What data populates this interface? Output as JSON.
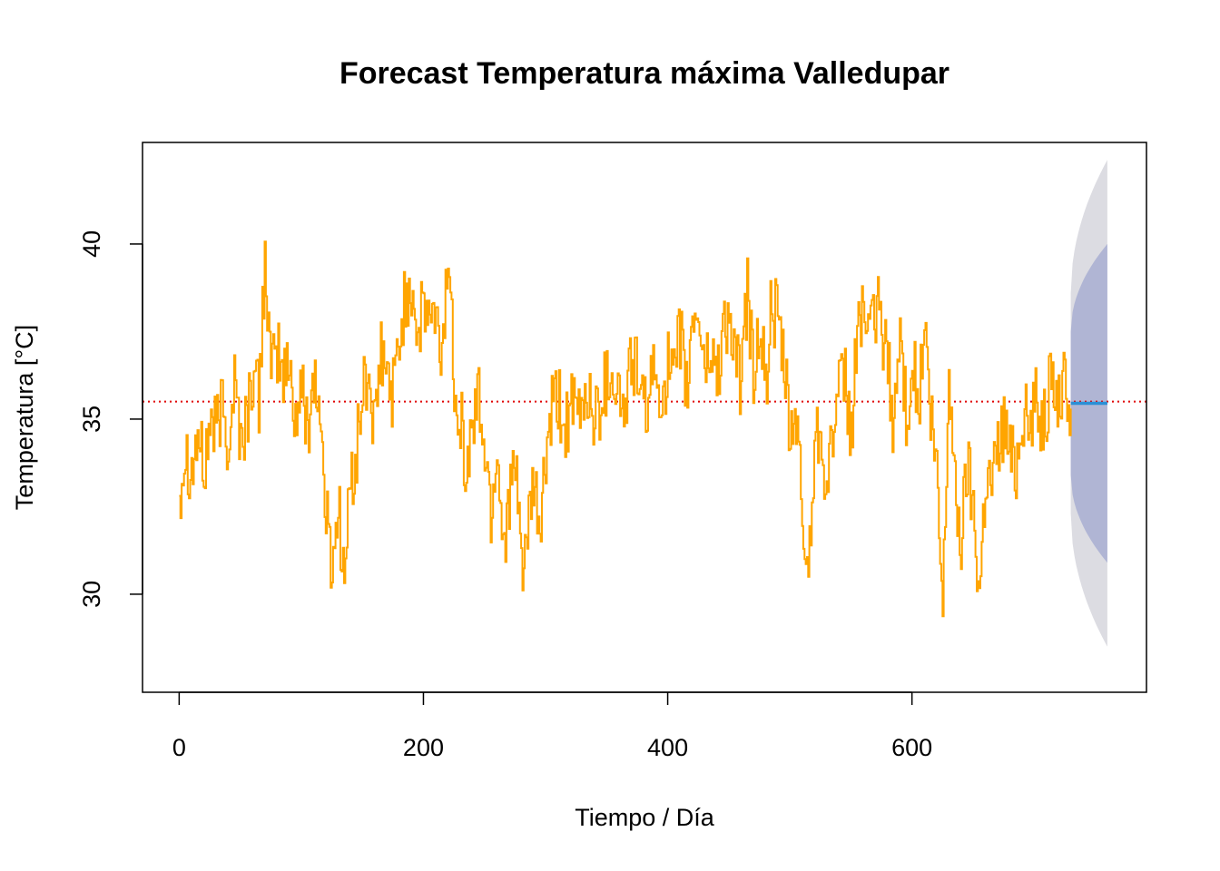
{
  "chart_data": {
    "type": "line",
    "title": "Forecast Temperatura máxima Valledupar",
    "xlabel": "Tiempo / Día",
    "ylabel": "Temperatura [°C]",
    "xlim": [
      -30,
      792
    ],
    "ylim": [
      27.2,
      42.9
    ],
    "xticks": [
      0,
      200,
      400,
      600
    ],
    "yticks": [
      30,
      35,
      40
    ],
    "grid": false,
    "legend": "none",
    "mean_line": {
      "value": 35.5,
      "color": "#e00000",
      "style": "dotted"
    },
    "series": [
      {
        "color": "#FFA500",
        "x": [
          0,
          5,
          10,
          15,
          20,
          25,
          30,
          35,
          40,
          45,
          50,
          55,
          60,
          65,
          70,
          75,
          80,
          85,
          90,
          95,
          100,
          105,
          110,
          115,
          120,
          125,
          130,
          135,
          140,
          145,
          150,
          155,
          160,
          165,
          170,
          175,
          180,
          185,
          190,
          195,
          200,
          205,
          210,
          215,
          220,
          225,
          230,
          235,
          240,
          245,
          250,
          255,
          260,
          265,
          270,
          275,
          280,
          285,
          290,
          295,
          300,
          305,
          310,
          315,
          320,
          325,
          330,
          335,
          340,
          345,
          350,
          355,
          360,
          365,
          370,
          375,
          380,
          385,
          390,
          395,
          400,
          405,
          410,
          415,
          420,
          425,
          430,
          435,
          440,
          445,
          450,
          455,
          460,
          465,
          470,
          475,
          480,
          485,
          490,
          495,
          500,
          505,
          510,
          515,
          520,
          525,
          530,
          535,
          540,
          545,
          550,
          555,
          560,
          565,
          570,
          575,
          580,
          585,
          590,
          595,
          600,
          605,
          610,
          615,
          620,
          625,
          630,
          635,
          640,
          645,
          650,
          655,
          660,
          665,
          670,
          675,
          680,
          685,
          690,
          695,
          700,
          705,
          710,
          715,
          720,
          725,
          730
        ],
        "values": [
          33.0,
          34.2,
          33.5,
          34.6,
          33.4,
          35.0,
          34.6,
          35.4,
          34.3,
          36.2,
          34.4,
          35.0,
          36.3,
          35.5,
          39.8,
          36.0,
          37.0,
          36.2,
          36.5,
          35.0,
          35.8,
          34.8,
          36.4,
          35.0,
          32.3,
          30.8,
          32.6,
          30.4,
          33.2,
          34.0,
          35.8,
          36.2,
          34.5,
          36.9,
          36.1,
          35.8,
          37.2,
          38.5,
          38.9,
          37.4,
          38.1,
          38.0,
          37.6,
          36.8,
          39.8,
          36.2,
          35.2,
          33.2,
          35.0,
          35.6,
          34.1,
          32.3,
          34.2,
          31.5,
          32.8,
          33.4,
          31.0,
          31.5,
          33.0,
          31.8,
          33.8,
          35.2,
          35.5,
          34.7,
          35.3,
          35.0,
          35.4,
          35.8,
          34.9,
          35.6,
          36.2,
          36.4,
          35.6,
          35.2,
          36.8,
          36.4,
          35.0,
          36.0,
          36.1,
          35.8,
          36.5,
          35.9,
          37.5,
          35.6,
          37.8,
          38.1,
          36.4,
          37.0,
          36.2,
          37.6,
          37.9,
          36.6,
          36.0,
          38.7,
          36.2,
          37.8,
          35.8,
          38.4,
          37.6,
          36.4,
          34.4,
          35.2,
          32.0,
          30.6,
          34.3,
          35.0,
          33.0,
          34.8,
          35.6,
          36.1,
          34.4,
          37.6,
          38.4,
          37.0,
          38.2,
          37.7,
          36.5,
          34.8,
          37.5,
          35.1,
          36.8,
          35.2,
          37.6,
          35.0,
          33.3,
          29.5,
          36.5,
          32.9,
          31.6,
          33.8,
          32.5,
          30.1,
          33.5,
          33.2,
          34.2,
          35.0,
          34.0,
          33.7,
          35.5,
          34.6,
          35.6,
          35.1,
          35.4,
          36.2,
          35.5,
          36.0,
          35.3
        ]
      }
    ],
    "forecast": {
      "x_start": 730,
      "x_end": 760,
      "point": 35.45,
      "line_color": "#2a8fd6",
      "inner_color": "#b0b5d4",
      "outer_color": "#dcdce2",
      "upper80": [
        37.5,
        40.0
      ],
      "lower80": [
        33.4,
        30.9
      ],
      "upper95": [
        38.6,
        42.4
      ],
      "lower95": [
        32.3,
        28.5
      ]
    }
  }
}
